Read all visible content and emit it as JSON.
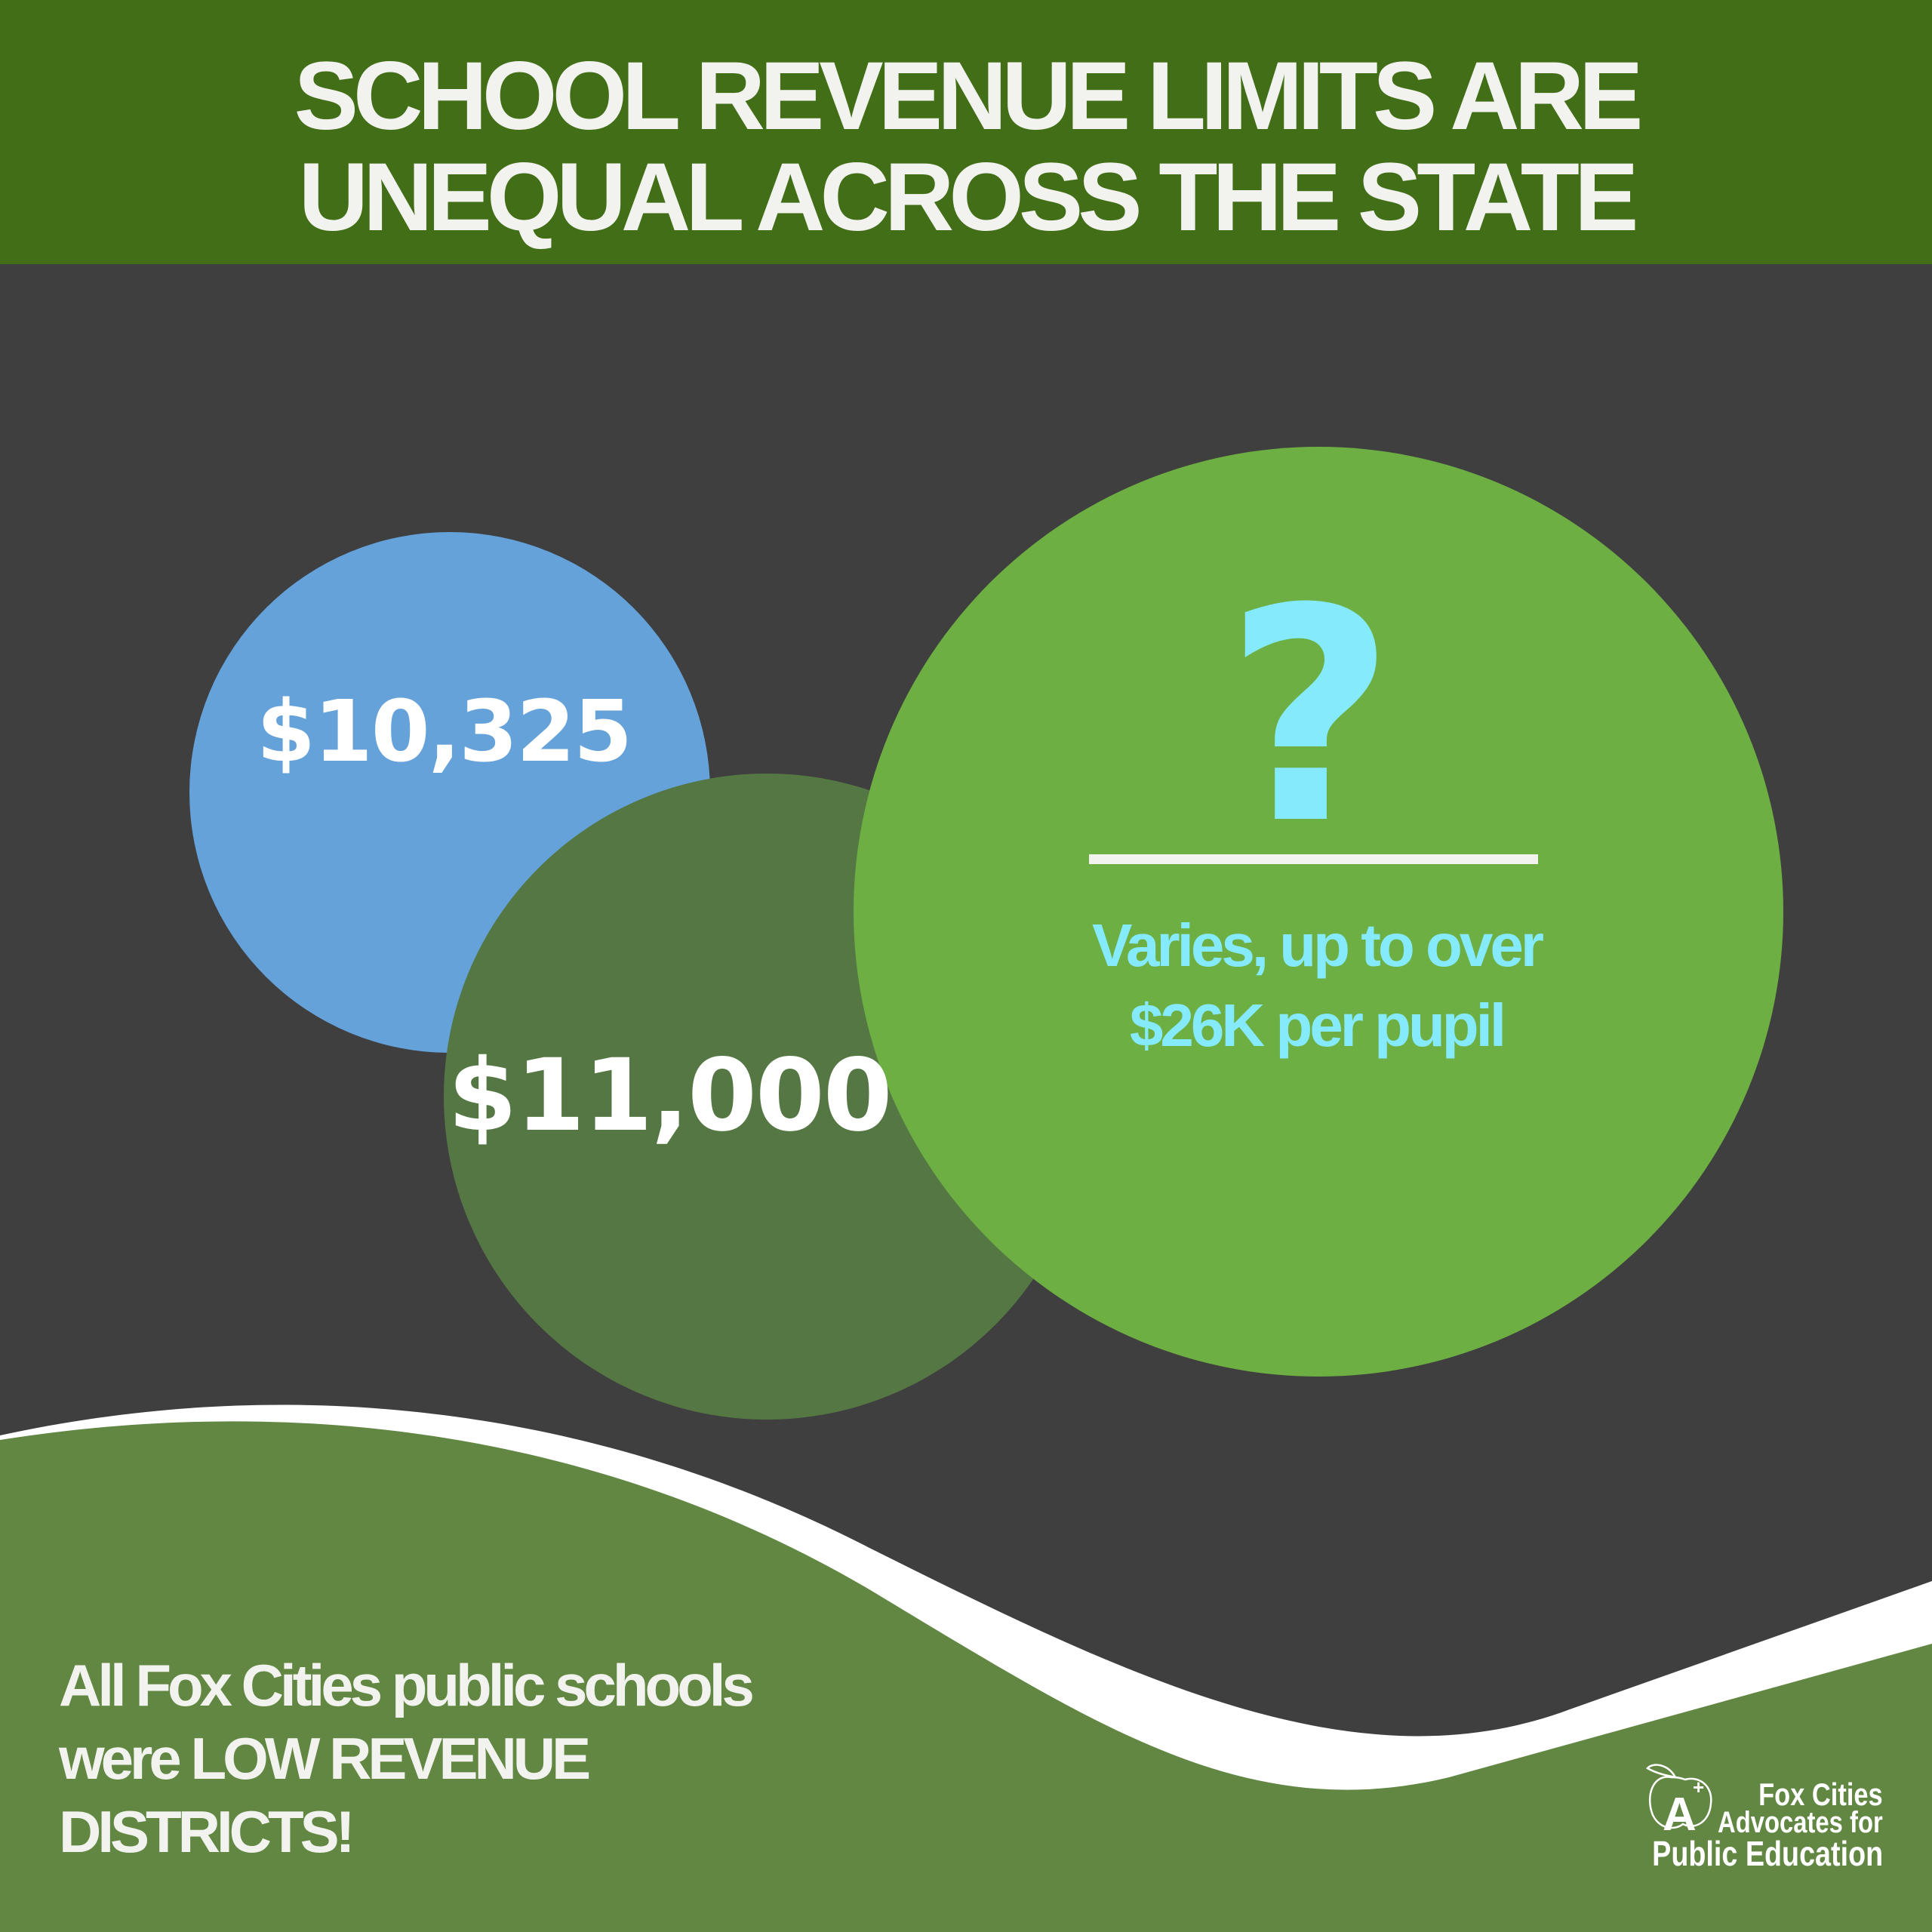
{
  "header": {
    "title_line1": "SCHOOL REVENUE LIMITS ARE",
    "title_line2": "UNEQUAL ACROSS THE STATE"
  },
  "circles": {
    "blue": {
      "amount": "$10,325",
      "color": "#65a2da"
    },
    "dark_green": {
      "amount": "$11,000",
      "color": "#557744"
    },
    "green": {
      "symbol": "?",
      "text": "Varies, up to over $26K per pupil",
      "color": "#6daf43",
      "text_color": "#85eafc"
    }
  },
  "footer": {
    "line1": "All Fox Cities public schools",
    "line2": "were LOW REVENUE",
    "line3": "DISTRICTS!"
  },
  "logo": {
    "line1": "Fox Cities",
    "line2": "Advocates for",
    "line3": "Public Education",
    "icon": "apple-a-plus-icon"
  },
  "colors": {
    "header": "#416e17",
    "background": "#3f3f3f",
    "wave_green": "#618743",
    "wave_white": "#ffffff"
  }
}
